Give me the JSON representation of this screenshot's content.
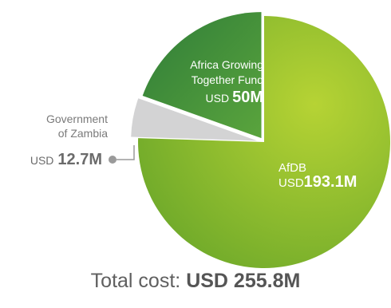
{
  "chart_data": {
    "type": "pie",
    "unit": "USD",
    "slices": [
      {
        "label_lines": [
          "AfDB"
        ],
        "currency": "USD",
        "value_text": "193.1M",
        "value": 193.1,
        "color": "#8cc63f"
      },
      {
        "label_lines": [
          "Government",
          "of Zambia"
        ],
        "currency": "USD",
        "value_text": "12.7M",
        "value": 12.7,
        "color": "#d0d2d3"
      },
      {
        "label_lines": [
          "Africa Growing",
          "Together Fund"
        ],
        "currency": "USD",
        "value_text": "50M",
        "value": 50,
        "color": "#4a9a3a"
      }
    ],
    "total": {
      "label": "Total cost:",
      "value": "USD 255.8M"
    }
  }
}
